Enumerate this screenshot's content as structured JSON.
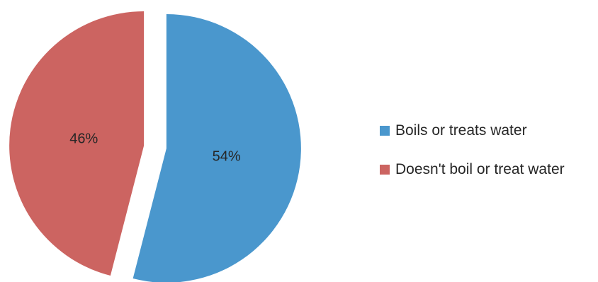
{
  "chart_data": {
    "type": "pie",
    "title": "",
    "categories": [
      "Boils or treats water",
      "Doesn't boil or treat water"
    ],
    "values": [
      54,
      46
    ],
    "data_labels": [
      "54%",
      "46%"
    ],
    "colors": [
      "#4a97cd",
      "#cc6461"
    ],
    "legend_position": "right",
    "exploded": true,
    "start_angle_deg": 0,
    "direction": "clockwise"
  }
}
